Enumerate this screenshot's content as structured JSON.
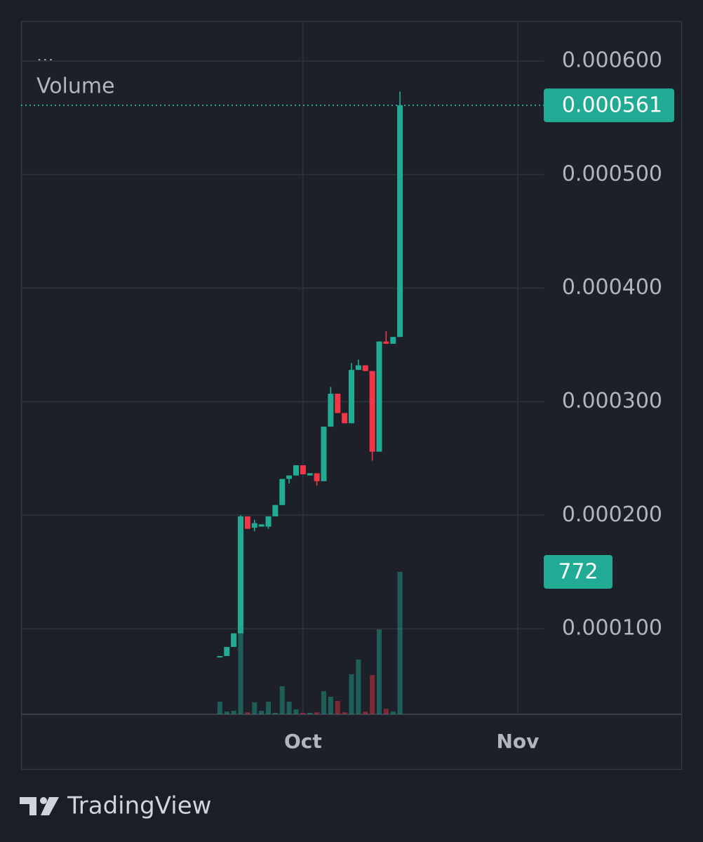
{
  "chart_data": {
    "type": "candlestick",
    "legend": {
      "menu": "...",
      "volume": "Volume"
    },
    "x": [
      -12,
      -11,
      -10,
      -9,
      -8,
      -7,
      -6,
      -5,
      -4,
      -3,
      -2,
      -1,
      0,
      1,
      2,
      3,
      4,
      5,
      6,
      7,
      8,
      9,
      10,
      11,
      12,
      13,
      14
    ],
    "open": [
      7.5e-05,
      7.6e-05,
      8.4e-05,
      9.6e-05,
      0.000199,
      0.000189,
      0.00019,
      0.00019,
      0.000199,
      0.000209,
      0.000232,
      0.000235,
      0.000244,
      0.000235,
      0.000237,
      0.00023,
      0.000278,
      0.000307,
      0.00029,
      0.000281,
      0.000328,
      0.000332,
      0.000327,
      0.000256,
      0.000353,
      0.000351,
      0.000357
    ],
    "high": [
      7.6e-05,
      8.4e-05,
      9.6e-05,
      0.0002,
      0.000199,
      0.000196,
      0.000192,
      0.000199,
      0.000209,
      0.000232,
      0.000235,
      0.000244,
      0.000244,
      0.000237,
      0.000237,
      0.000278,
      0.000313,
      0.000307,
      0.00029,
      0.000334,
      0.000337,
      0.000332,
      0.000327,
      0.000353,
      0.000362,
      0.000357,
      0.000573
    ],
    "low": [
      7.5e-05,
      7.6e-05,
      8.4e-05,
      9.6e-05,
      0.000188,
      0.000186,
      0.00019,
      0.000188,
      0.000199,
      0.000209,
      0.000228,
      0.000235,
      0.000236,
      0.000235,
      0.000226,
      0.00023,
      0.000278,
      0.00029,
      0.000281,
      0.000281,
      0.000328,
      0.000327,
      0.000248,
      0.000256,
      0.000351,
      0.000351,
      0.000357
    ],
    "close": [
      7.6e-05,
      8.4e-05,
      9.6e-05,
      0.000199,
      0.000188,
      0.000193,
      0.000192,
      0.000199,
      0.000209,
      0.000232,
      0.000235,
      0.000244,
      0.000236,
      0.000237,
      0.00023,
      0.000278,
      0.000307,
      0.00029,
      0.000281,
      0.000328,
      0.000332,
      0.000327,
      0.000256,
      0.000353,
      0.000351,
      0.000357,
      0.000561
    ],
    "volume": [
      68,
      15,
      19,
      441,
      11,
      65,
      19,
      68,
      8,
      152,
      68,
      27,
      8,
      8,
      11,
      125,
      95,
      72,
      11,
      217,
      297,
      15,
      213,
      460,
      30,
      15,
      772
    ],
    "up_color": "#22ab94",
    "down_color": "#f23645",
    "xlim": [
      -40.7,
      34.75
    ],
    "xticks": [
      {
        "value": 0,
        "label": "Oct"
      },
      {
        "value": 31,
        "label": "Nov"
      }
    ],
    "ylim": [
      2.47e-05,
      0.0006352
    ],
    "yticks": [
      {
        "value": 0.0001,
        "label": "0.000100"
      },
      {
        "value": 0.0002,
        "label": "0.000200"
      },
      {
        "value": 0.0003,
        "label": "0.000300"
      },
      {
        "value": 0.0004,
        "label": "0.000400"
      },
      {
        "value": 0.0005,
        "label": "0.000500"
      },
      {
        "value": 0.0006,
        "label": "0.000600"
      }
    ],
    "volume_lim": [
      0,
      3757
    ],
    "grid": true
  },
  "brand": "TradingView"
}
